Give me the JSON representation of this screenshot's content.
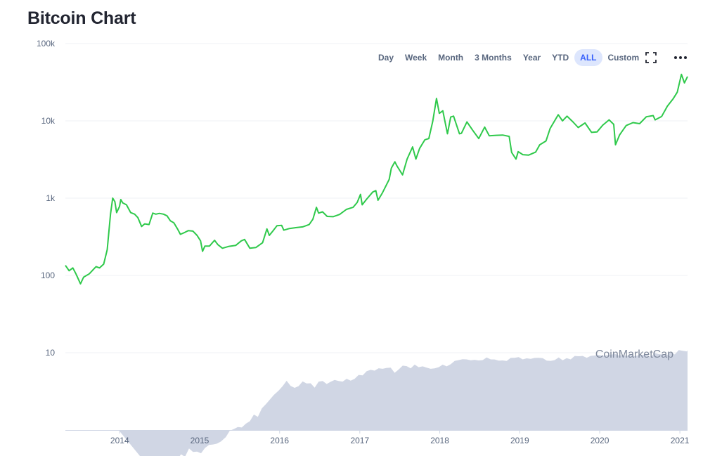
{
  "header": {
    "title": "Bitcoin Chart"
  },
  "toolbar": {
    "ranges": [
      "Day",
      "Week",
      "Month",
      "3 Months",
      "Year",
      "YTD",
      "ALL",
      "Custom"
    ],
    "active_range": "ALL",
    "fullscreen_icon": "fullscreen-icon",
    "more_icon": "more-horizontal-icon"
  },
  "colors": {
    "line": "#2fc94b",
    "volume": "#d0d6e4",
    "active_bg": "#dde6fd",
    "active_text": "#3861fb",
    "label": "#58667e",
    "grid": "#eff2f5"
  },
  "chart_data": {
    "type": "line",
    "y_scale": "log",
    "ylim": [
      1,
      100000
    ],
    "xlim": [
      "2013-04-28",
      "2021-02-05"
    ],
    "grid": true,
    "y_ticks": [
      {
        "value": 10,
        "label": "10"
      },
      {
        "value": 100,
        "label": "100"
      },
      {
        "value": 1000,
        "label": "1k"
      },
      {
        "value": 10000,
        "label": "10k"
      },
      {
        "value": 100000,
        "label": "100k"
      }
    ],
    "x_ticks": [
      {
        "value": "2014-01-01",
        "label": "2014"
      },
      {
        "value": "2015-01-01",
        "label": "2015"
      },
      {
        "value": "2016-01-01",
        "label": "2016"
      },
      {
        "value": "2017-01-01",
        "label": "2017"
      },
      {
        "value": "2018-01-01",
        "label": "2018"
      },
      {
        "value": "2019-01-01",
        "label": "2019"
      },
      {
        "value": "2020-01-01",
        "label": "2020"
      },
      {
        "value": "2021-01-01",
        "label": "2021"
      }
    ],
    "watermark": "CoinMarketCap",
    "series": [
      {
        "points": [
          [
            "2013-04-28",
            135
          ],
          [
            "2013-05-15",
            115
          ],
          [
            "2013-06-01",
            125
          ],
          [
            "2013-06-15",
            105
          ],
          [
            "2013-07-06",
            78
          ],
          [
            "2013-07-20",
            95
          ],
          [
            "2013-08-15",
            105
          ],
          [
            "2013-09-15",
            130
          ],
          [
            "2013-10-01",
            125
          ],
          [
            "2013-10-20",
            140
          ],
          [
            "2013-11-05",
            215
          ],
          [
            "2013-11-20",
            620
          ],
          [
            "2013-11-30",
            1000
          ],
          [
            "2013-12-10",
            900
          ],
          [
            "2013-12-18",
            650
          ],
          [
            "2013-12-31",
            780
          ],
          [
            "2014-01-06",
            960
          ],
          [
            "2014-01-15",
            870
          ],
          [
            "2014-02-01",
            820
          ],
          [
            "2014-02-20",
            650
          ],
          [
            "2014-03-10",
            620
          ],
          [
            "2014-03-25",
            560
          ],
          [
            "2014-04-11",
            430
          ],
          [
            "2014-04-25",
            465
          ],
          [
            "2014-05-15",
            455
          ],
          [
            "2014-06-01",
            640
          ],
          [
            "2014-06-15",
            620
          ],
          [
            "2014-07-01",
            635
          ],
          [
            "2014-07-20",
            620
          ],
          [
            "2014-08-05",
            590
          ],
          [
            "2014-08-20",
            510
          ],
          [
            "2014-09-05",
            480
          ],
          [
            "2014-09-22",
            400
          ],
          [
            "2014-10-05",
            340
          ],
          [
            "2014-10-25",
            360
          ],
          [
            "2014-11-10",
            380
          ],
          [
            "2014-12-01",
            375
          ],
          [
            "2014-12-20",
            330
          ],
          [
            "2015-01-05",
            280
          ],
          [
            "2015-01-14",
            205
          ],
          [
            "2015-01-25",
            240
          ],
          [
            "2015-02-15",
            240
          ],
          [
            "2015-03-10",
            285
          ],
          [
            "2015-03-25",
            250
          ],
          [
            "2015-04-15",
            225
          ],
          [
            "2015-05-15",
            238
          ],
          [
            "2015-06-15",
            245
          ],
          [
            "2015-07-10",
            280
          ],
          [
            "2015-07-25",
            292
          ],
          [
            "2015-08-18",
            225
          ],
          [
            "2015-09-15",
            230
          ],
          [
            "2015-10-15",
            265
          ],
          [
            "2015-11-04",
            400
          ],
          [
            "2015-11-15",
            330
          ],
          [
            "2015-12-01",
            375
          ],
          [
            "2015-12-20",
            440
          ],
          [
            "2016-01-10",
            445
          ],
          [
            "2016-01-20",
            385
          ],
          [
            "2016-02-15",
            405
          ],
          [
            "2016-03-15",
            415
          ],
          [
            "2016-04-15",
            425
          ],
          [
            "2016-05-15",
            455
          ],
          [
            "2016-06-01",
            535
          ],
          [
            "2016-06-17",
            760
          ],
          [
            "2016-06-27",
            640
          ],
          [
            "2016-07-15",
            665
          ],
          [
            "2016-08-05",
            580
          ],
          [
            "2016-09-01",
            575
          ],
          [
            "2016-10-01",
            615
          ],
          [
            "2016-11-01",
            715
          ],
          [
            "2016-12-01",
            760
          ],
          [
            "2016-12-20",
            880
          ],
          [
            "2017-01-04",
            1120
          ],
          [
            "2017-01-12",
            820
          ],
          [
            "2017-02-01",
            970
          ],
          [
            "2017-03-01",
            1200
          ],
          [
            "2017-03-15",
            1250
          ],
          [
            "2017-03-25",
            940
          ],
          [
            "2017-04-15",
            1180
          ],
          [
            "2017-05-15",
            1750
          ],
          [
            "2017-05-25",
            2450
          ],
          [
            "2017-06-10",
            2950
          ],
          [
            "2017-06-20",
            2600
          ],
          [
            "2017-07-15",
            2000
          ],
          [
            "2017-08-05",
            3200
          ],
          [
            "2017-08-30",
            4600
          ],
          [
            "2017-09-14",
            3200
          ],
          [
            "2017-10-01",
            4400
          ],
          [
            "2017-10-25",
            5700
          ],
          [
            "2017-11-12",
            5900
          ],
          [
            "2017-11-30",
            9900
          ],
          [
            "2017-12-17",
            19500
          ],
          [
            "2017-12-30",
            12500
          ],
          [
            "2018-01-15",
            13500
          ],
          [
            "2018-02-05",
            6800
          ],
          [
            "2018-02-20",
            11200
          ],
          [
            "2018-03-05",
            11500
          ],
          [
            "2018-04-01",
            6800
          ],
          [
            "2018-04-10",
            6900
          ],
          [
            "2018-05-05",
            9700
          ],
          [
            "2018-06-01",
            7500
          ],
          [
            "2018-06-28",
            5900
          ],
          [
            "2018-07-25",
            8300
          ],
          [
            "2018-08-15",
            6400
          ],
          [
            "2018-09-15",
            6500
          ],
          [
            "2018-10-15",
            6550
          ],
          [
            "2018-11-14",
            6300
          ],
          [
            "2018-11-25",
            3900
          ],
          [
            "2018-12-15",
            3200
          ],
          [
            "2018-12-25",
            4000
          ],
          [
            "2019-01-15",
            3650
          ],
          [
            "2019-02-10",
            3600
          ],
          [
            "2019-03-15",
            3950
          ],
          [
            "2019-04-02",
            4900
          ],
          [
            "2019-05-01",
            5500
          ],
          [
            "2019-05-20",
            8000
          ],
          [
            "2019-06-26",
            12000
          ],
          [
            "2019-07-15",
            10000
          ],
          [
            "2019-08-05",
            11500
          ],
          [
            "2019-09-01",
            9700
          ],
          [
            "2019-09-25",
            8200
          ],
          [
            "2019-10-26",
            9400
          ],
          [
            "2019-11-25",
            7100
          ],
          [
            "2019-12-20",
            7200
          ],
          [
            "2020-01-15",
            8800
          ],
          [
            "2020-02-13",
            10300
          ],
          [
            "2020-03-05",
            9000
          ],
          [
            "2020-03-13",
            4900
          ],
          [
            "2020-04-01",
            6600
          ],
          [
            "2020-05-01",
            8700
          ],
          [
            "2020-06-01",
            9500
          ],
          [
            "2020-07-01",
            9200
          ],
          [
            "2020-08-01",
            11300
          ],
          [
            "2020-09-01",
            11700
          ],
          [
            "2020-09-10",
            10300
          ],
          [
            "2020-10-10",
            11400
          ],
          [
            "2020-11-05",
            15500
          ],
          [
            "2020-12-01",
            19200
          ],
          [
            "2020-12-20",
            23500
          ],
          [
            "2021-01-08",
            40000
          ],
          [
            "2021-01-22",
            31000
          ],
          [
            "2021-02-05",
            37500
          ]
        ]
      }
    ],
    "volume": {
      "start": "2013-12-27",
      "end": "2021-02-05",
      "levels": [
        [
          0.34,
          0.38
        ],
        [
          0.38,
          0.37
        ],
        [
          0.43,
          0.34
        ],
        [
          0.48,
          0.36
        ],
        [
          0.53,
          0.33
        ],
        [
          0.58,
          0.38
        ],
        [
          0.63,
          0.4
        ],
        [
          0.68,
          0.42
        ],
        [
          0.73,
          0.41
        ],
        [
          0.78,
          0.48
        ],
        [
          0.83,
          0.45
        ],
        [
          0.88,
          0.56
        ],
        [
          0.93,
          0.53
        ],
        [
          0.98,
          0.51
        ],
        [
          1.03,
          0.5
        ],
        [
          1.08,
          0.58
        ],
        [
          1.13,
          0.64
        ],
        [
          1.18,
          0.63
        ],
        [
          1.23,
          0.68
        ],
        [
          1.28,
          0.69
        ],
        [
          1.34,
          0.81
        ],
        [
          1.39,
          0.97
        ],
        [
          1.44,
          1.03
        ],
        [
          1.49,
          1.06
        ],
        [
          1.54,
          1.1
        ],
        [
          1.59,
          1.17
        ],
        [
          1.64,
          1.3
        ],
        [
          1.69,
          1.57
        ],
        [
          1.74,
          1.48
        ],
        [
          1.79,
          1.85
        ],
        [
          1.84,
          2.2
        ],
        [
          1.89,
          2.4
        ],
        [
          1.94,
          2.84
        ],
        [
          2.0,
          3.2
        ],
        [
          2.05,
          3.7
        ],
        [
          2.1,
          4.2
        ],
        [
          2.15,
          3.8
        ],
        [
          2.2,
          3.4
        ],
        [
          2.25,
          3.7
        ],
        [
          2.3,
          4.2
        ],
        [
          2.35,
          4.0
        ],
        [
          2.4,
          3.9
        ],
        [
          2.45,
          3.6
        ],
        [
          2.5,
          4.1
        ],
        [
          2.55,
          4.3
        ],
        [
          2.6,
          3.9
        ],
        [
          2.65,
          4.2
        ],
        [
          2.7,
          4.3
        ],
        [
          2.75,
          4.4
        ],
        [
          2.8,
          4.1
        ],
        [
          2.85,
          4.6
        ],
        [
          2.9,
          4.3
        ],
        [
          2.95,
          4.6
        ],
        [
          3.0,
          5.0
        ],
        [
          3.05,
          5.2
        ],
        [
          3.1,
          5.6
        ],
        [
          3.15,
          6.0
        ],
        [
          3.2,
          5.8
        ],
        [
          3.25,
          6.3
        ],
        [
          3.3,
          6.0
        ],
        [
          3.35,
          6.5
        ],
        [
          3.4,
          6.2
        ],
        [
          3.45,
          5.5
        ],
        [
          3.5,
          6.0
        ],
        [
          3.55,
          6.8
        ],
        [
          3.6,
          6.5
        ],
        [
          3.65,
          6.4
        ],
        [
          3.7,
          6.8
        ],
        [
          3.75,
          6.5
        ],
        [
          3.8,
          6.6
        ],
        [
          3.85,
          6.4
        ],
        [
          3.9,
          6.0
        ],
        [
          3.95,
          6.4
        ],
        [
          4.0,
          6.3
        ],
        [
          4.05,
          7.0
        ],
        [
          4.1,
          6.6
        ],
        [
          4.15,
          7.1
        ],
        [
          4.2,
          7.6
        ],
        [
          4.25,
          8.2
        ],
        [
          4.3,
          8.0
        ],
        [
          4.35,
          8.2
        ],
        [
          4.4,
          7.9
        ],
        [
          4.45,
          8.1
        ],
        [
          4.5,
          7.7
        ],
        [
          4.55,
          8.2
        ],
        [
          4.6,
          8.4
        ],
        [
          4.65,
          8.2
        ],
        [
          4.7,
          8.1
        ],
        [
          4.75,
          7.9
        ],
        [
          4.8,
          7.7
        ],
        [
          4.85,
          8.0
        ],
        [
          4.9,
          8.3
        ],
        [
          4.95,
          8.6
        ],
        [
          5.0,
          8.7
        ],
        [
          5.05,
          8.2
        ],
        [
          5.1,
          8.2
        ],
        [
          5.15,
          8.5
        ],
        [
          5.2,
          8.3
        ],
        [
          5.25,
          8.6
        ],
        [
          5.3,
          8.4
        ],
        [
          5.35,
          7.9
        ],
        [
          5.4,
          7.6
        ],
        [
          5.45,
          8.2
        ],
        [
          5.5,
          8.4
        ],
        [
          5.55,
          8.0
        ],
        [
          5.6,
          8.4
        ],
        [
          5.65,
          8.2
        ],
        [
          5.7,
          8.8
        ],
        [
          5.75,
          9.2
        ],
        [
          5.8,
          8.8
        ],
        [
          5.85,
          8.6
        ],
        [
          5.9,
          9.0
        ],
        [
          5.95,
          9.2
        ],
        [
          6.0,
          9.1
        ],
        [
          6.05,
          9.3
        ],
        [
          6.1,
          9.0
        ],
        [
          6.15,
          9.4
        ],
        [
          6.2,
          9.6
        ],
        [
          6.25,
          9.2
        ],
        [
          6.3,
          9.0
        ],
        [
          6.35,
          9.3
        ],
        [
          6.4,
          9.1
        ],
        [
          6.45,
          9.0
        ],
        [
          6.5,
          9.2
        ],
        [
          6.55,
          9.4
        ],
        [
          6.6,
          9.2
        ],
        [
          6.65,
          9.0
        ],
        [
          6.7,
          9.6
        ],
        [
          6.75,
          9.6
        ],
        [
          6.8,
          9.4
        ],
        [
          6.85,
          9.3
        ],
        [
          6.9,
          9.8
        ],
        [
          6.95,
          9.7
        ],
        [
          7.0,
          10.5
        ],
        [
          7.05,
          10.6
        ],
        [
          7.1,
          10.3
        ],
        [
          7.15,
          10.7
        ]
      ]
    }
  }
}
